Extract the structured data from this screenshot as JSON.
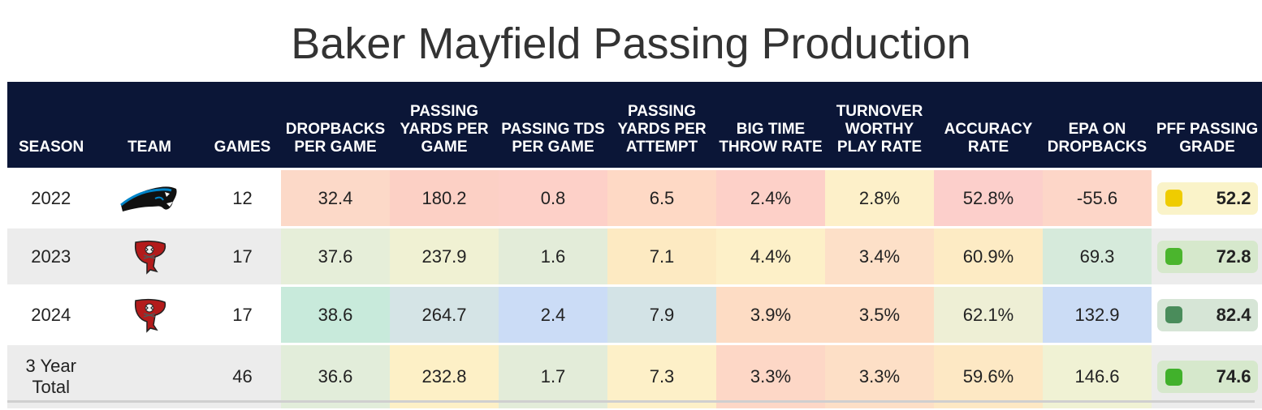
{
  "title": "Baker Mayfield Passing Production",
  "headers": [
    "SEASON",
    "TEAM",
    "GAMES",
    "DROPBACKS PER GAME",
    "PASSING YARDS PER GAME",
    "PASSING TDS PER GAME",
    "PASSING YARDS PER ATTEMPT",
    "BIG TIME THROW RATE",
    "TURNOVER WORTHY PLAY RATE",
    "ACCURACY RATE",
    "EPA ON DROPBACKS",
    "PFF PASSING GRADE"
  ],
  "rows": [
    {
      "season": "2022",
      "team_logo": "carolina-panthers-logo",
      "games": "12",
      "stats": [
        "32.4",
        "180.2",
        "0.8",
        "6.5",
        "2.4%",
        "2.8%",
        "52.8%",
        "-55.6"
      ],
      "stat_colors": [
        "#fcd9c8",
        "#fcd0c5",
        "#fdd0c8",
        "#fed9c5",
        "#fdd0c8",
        "#fdf0c9",
        "#fccfcb",
        "#fdd6c8"
      ],
      "grade": "52.2",
      "grade_bg": "#faf3c9",
      "grade_dot": "#efcc00"
    },
    {
      "season": "2023",
      "team_logo": "tampa-bay-buccaneers-logo",
      "games": "17",
      "stats": [
        "37.6",
        "237.9",
        "1.6",
        "7.1",
        "4.4%",
        "3.4%",
        "60.9%",
        "69.3"
      ],
      "stat_colors": [
        "#e6eed9",
        "#f0f1d3",
        "#e3ecd9",
        "#fdeac2",
        "#fdf0c8",
        "#fde0c8",
        "#fdebc4",
        "#d6eadb"
      ],
      "grade": "72.8",
      "grade_bg": "#d6e8cc",
      "grade_dot": "#4bb52d"
    },
    {
      "season": "2024",
      "team_logo": "tampa-bay-buccaneers-logo",
      "games": "17",
      "stats": [
        "38.6",
        "264.7",
        "2.4",
        "7.9",
        "3.9%",
        "3.5%",
        "62.1%",
        "132.9"
      ],
      "stat_colors": [
        "#c8eadb",
        "#d5e4e6",
        "#cbdcf6",
        "#d3e3e6",
        "#fddcc4",
        "#fddcc4",
        "#eeefd5",
        "#cbdcf5"
      ],
      "grade": "82.4",
      "grade_bg": "#d6e5d6",
      "grade_dot": "#4a8c5b"
    },
    {
      "season": "3 Year Total",
      "team_logo": "",
      "games": "46",
      "stats": [
        "36.6",
        "232.8",
        "1.7",
        "7.3",
        "3.3%",
        "3.3%",
        "59.6%",
        "146.6"
      ],
      "stat_colors": [
        "#e2edda",
        "#fdf0c6",
        "#e3ecd9",
        "#fdf0c8",
        "#fdd7c6",
        "#fddfc6",
        "#fde8c4",
        "#f0f2d4"
      ],
      "grade": "74.6",
      "grade_bg": "#d6e8cc",
      "grade_dot": "#41b12b"
    }
  ]
}
